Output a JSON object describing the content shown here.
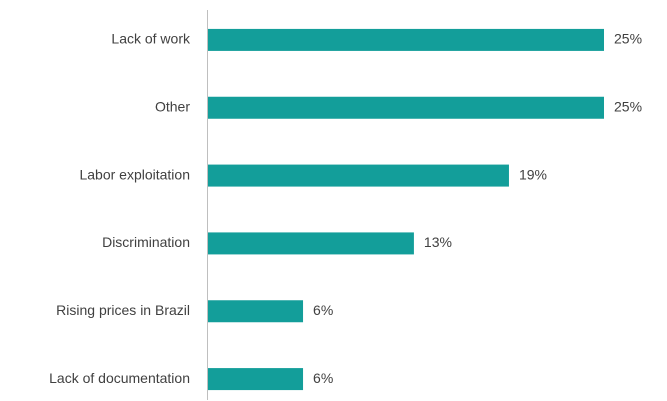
{
  "chart_data": {
    "type": "bar",
    "orientation": "horizontal",
    "categories": [
      "Lack of work",
      "Other",
      "Labor exploitation",
      "Discrimination",
      "Rising prices in Brazil",
      "Lack of documentation"
    ],
    "values": [
      25,
      25,
      19,
      13,
      6,
      6
    ],
    "value_labels": [
      "25%",
      "25%",
      "19%",
      "13%",
      "6%",
      "6%"
    ],
    "color": "#139e9a",
    "grid": false
  }
}
